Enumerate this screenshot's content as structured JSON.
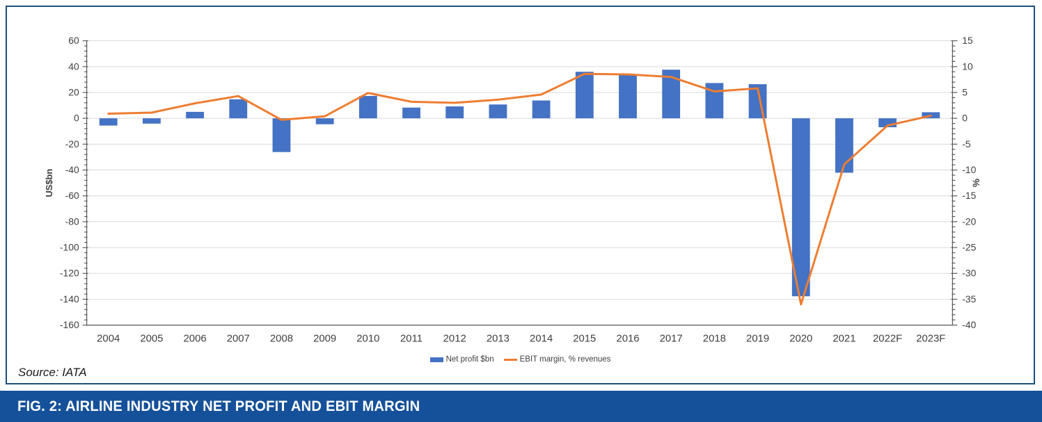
{
  "caption": {
    "text": "FIG. 2: AIRLINE INDUSTRY NET PROFIT AND EBIT MARGIN"
  },
  "source": {
    "text": "Source: IATA"
  },
  "legend": {
    "bar_label": "Net profit $bn",
    "line_label": "EBIT margin, % revenues"
  },
  "colors": {
    "bar": "#4472C4",
    "line": "#ED7D31",
    "grid": "#D9D9D9",
    "axis_line": "#595959",
    "tick_text": "#404040",
    "frame_border": "#1F4E79",
    "caption_bg": "#15519A",
    "caption_text": "#FFFFFF"
  },
  "chart_data": {
    "type": "bar",
    "subtype": "combo-bar-line-dual-axis",
    "categories": [
      "2004",
      "2005",
      "2006",
      "2007",
      "2008",
      "2009",
      "2010",
      "2011",
      "2012",
      "2013",
      "2014",
      "2015",
      "2016",
      "2017",
      "2018",
      "2019",
      "2020",
      "2021",
      "2022F",
      "2023F"
    ],
    "series": [
      {
        "name": "Net profit $bn",
        "type": "bar",
        "axis": "left",
        "color": "#4472C4",
        "values": [
          -5.6,
          -4.1,
          5.0,
          14.7,
          -26.1,
          -4.6,
          17.3,
          8.3,
          9.2,
          10.7,
          13.8,
          36.0,
          34.2,
          37.6,
          27.3,
          26.4,
          -137.7,
          -42.1,
          -6.9,
          4.7
        ]
      },
      {
        "name": "EBIT margin, % revenues",
        "type": "line",
        "axis": "right",
        "color": "#ED7D31",
        "values": [
          0.9,
          1.1,
          2.9,
          4.3,
          -0.3,
          0.4,
          4.9,
          3.2,
          3.0,
          3.6,
          4.6,
          8.6,
          8.5,
          8.0,
          5.2,
          5.8,
          -36.0,
          -8.9,
          -1.4,
          0.5
        ]
      }
    ],
    "left_axis": {
      "title": "US$bn",
      "min": -160,
      "max": 60,
      "major": 20,
      "minor": 4,
      "tick_labels": [
        "60",
        "40",
        "20",
        "0",
        "-20",
        "-40",
        "-60",
        "-80",
        "-100",
        "-120",
        "-140",
        "-160"
      ]
    },
    "right_axis": {
      "title": "%",
      "min": -40,
      "max": 15,
      "major": 5,
      "minor": 1,
      "tick_labels": [
        "15",
        "10",
        "5",
        "0",
        "-5",
        "-10",
        "-15",
        "-20",
        "-25",
        "-30",
        "-35",
        "-40"
      ]
    },
    "grid": true,
    "legend_position": "bottom"
  }
}
